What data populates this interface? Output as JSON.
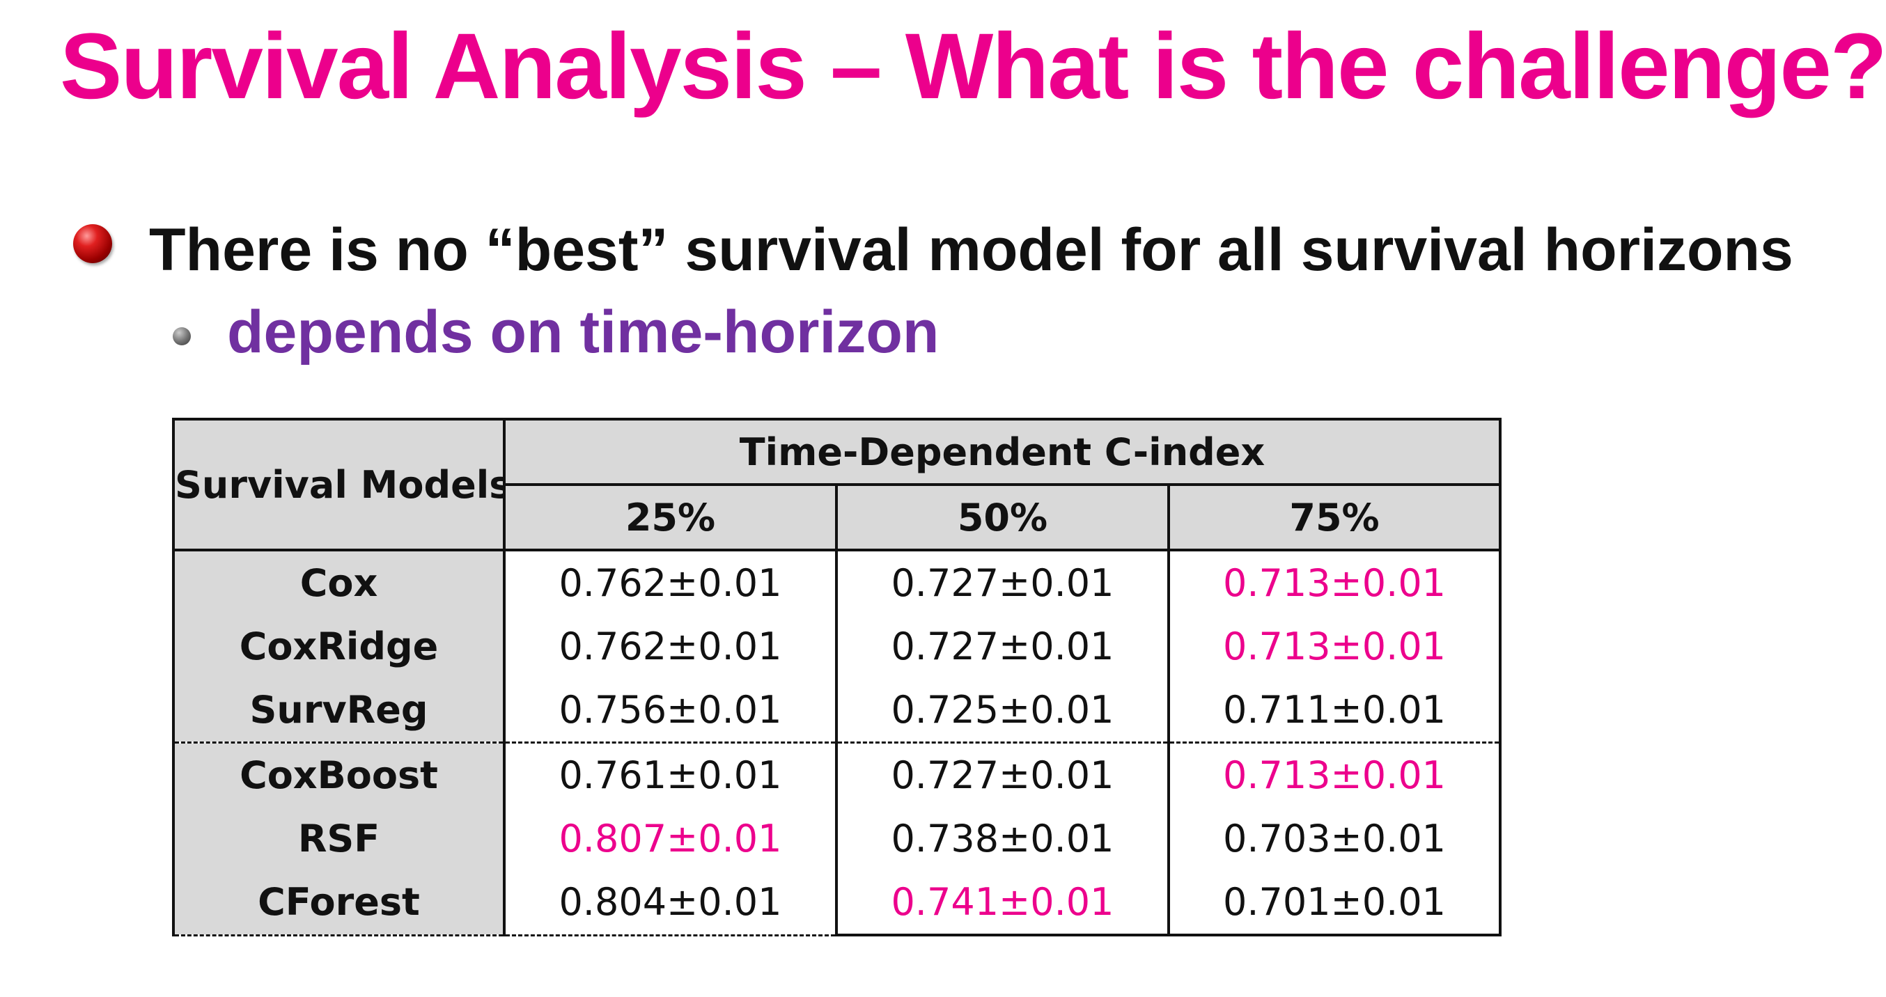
{
  "title": "Survival Analysis – What is the challenge?",
  "bullets": [
    {
      "text": "There is no “best” survival model for all survival horizons"
    },
    {
      "text": "depends on time-horizon"
    }
  ],
  "table": {
    "row_header": "Survival Models",
    "metric_header": "Time-Dependent C-index",
    "horizons": [
      "25%",
      "50%",
      "75%"
    ],
    "rows": [
      {
        "model": "Cox",
        "values": [
          "0.762±0.01",
          "0.727±0.01",
          "0.713±0.01"
        ],
        "highlight": [
          false,
          false,
          true
        ]
      },
      {
        "model": "CoxRidge",
        "values": [
          "0.762±0.01",
          "0.727±0.01",
          "0.713±0.01"
        ],
        "highlight": [
          false,
          false,
          true
        ]
      },
      {
        "model": "SurvReg",
        "values": [
          "0.756±0.01",
          "0.725±0.01",
          "0.711±0.01"
        ],
        "highlight": [
          false,
          false,
          false
        ]
      },
      {
        "model": "CoxBoost",
        "values": [
          "0.761±0.01",
          "0.727±0.01",
          "0.713±0.01"
        ],
        "highlight": [
          false,
          false,
          true
        ]
      },
      {
        "model": "RSF",
        "values": [
          "0.807±0.01",
          "0.738±0.01",
          "0.703±0.01"
        ],
        "highlight": [
          true,
          false,
          false
        ]
      },
      {
        "model": "CForest",
        "values": [
          "0.804±0.01",
          "0.741±0.01",
          "0.701±0.01"
        ],
        "highlight": [
          false,
          true,
          false
        ]
      }
    ],
    "group_break_before_row": 3
  },
  "colors": {
    "title": "#ec008c",
    "bullet_text": "#111111",
    "sub_bullet_text": "#7030a0",
    "highlight": "#ec008c",
    "header_fill": "#d9d9d9"
  },
  "icons": {
    "bullet_level_1": "red-sphere-bullet",
    "bullet_level_2": "grey-dot-bullet"
  }
}
